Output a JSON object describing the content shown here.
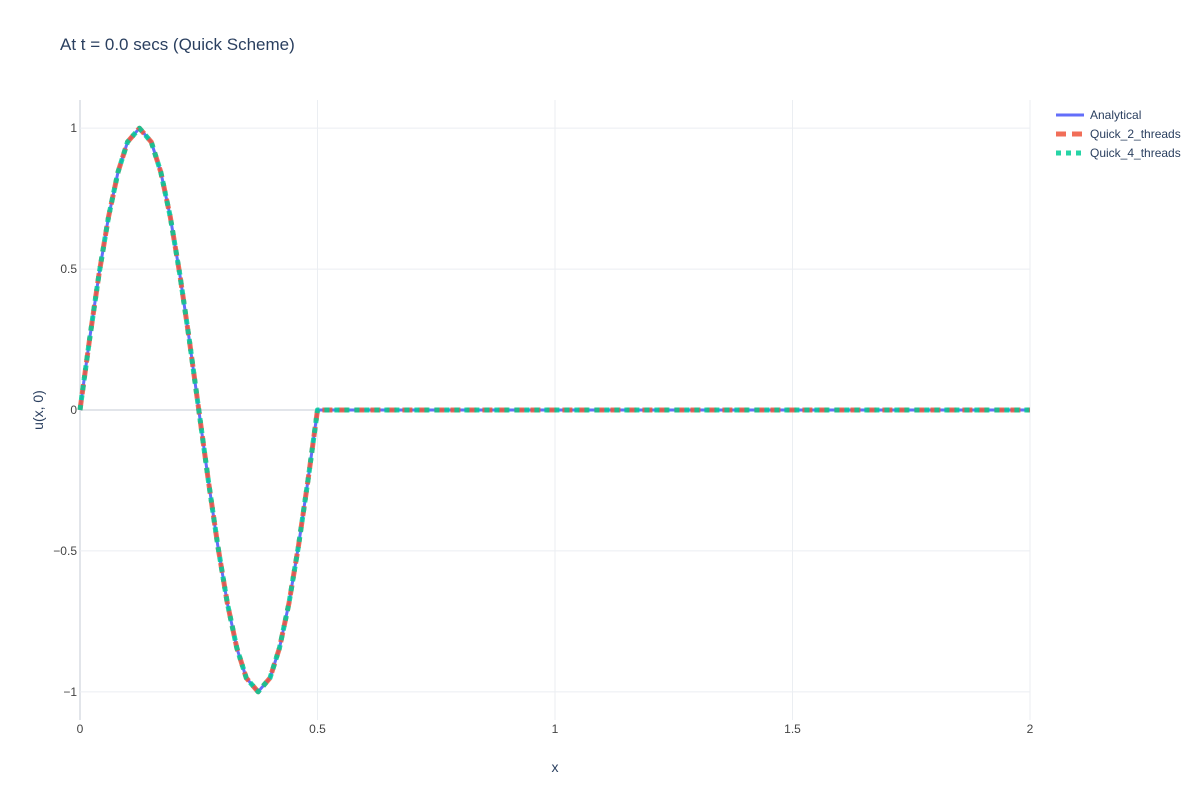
{
  "chart_data": {
    "type": "line",
    "title": "At t = 0.0 secs (Quick Scheme)",
    "xlabel": "x",
    "ylabel": "u(x, 0)",
    "xlim": [
      0,
      2
    ],
    "ylim": [
      -1.1,
      1.1
    ],
    "x_ticks": [
      0,
      0.5,
      1,
      1.5,
      2
    ],
    "x_tick_labels": [
      "0",
      "0.5",
      "1",
      "1.5",
      "2"
    ],
    "y_ticks": [
      1,
      0.5,
      0,
      -0.5,
      -1
    ],
    "y_tick_labels": [
      "1",
      "0.5",
      "0",
      "−0.5",
      "−1"
    ],
    "grid": true,
    "legend_position": "top-right",
    "series": [
      {
        "name": "Analytical",
        "color": "#636efa",
        "dash": "solid",
        "x": [
          0,
          0.02,
          0.04,
          0.06,
          0.08,
          0.1,
          0.125,
          0.15,
          0.17,
          0.19,
          0.21,
          0.23,
          0.25,
          0.27,
          0.29,
          0.31,
          0.33,
          0.35,
          0.375,
          0.4,
          0.42,
          0.44,
          0.46,
          0.48,
          0.5,
          0.75,
          1,
          1.25,
          1.5,
          1.75,
          2
        ],
        "y": [
          0,
          0.249,
          0.482,
          0.685,
          0.844,
          0.951,
          1,
          0.951,
          0.844,
          0.685,
          0.482,
          0.249,
          0,
          -0.249,
          -0.482,
          -0.685,
          -0.844,
          -0.951,
          -1,
          -0.951,
          -0.844,
          -0.685,
          -0.482,
          -0.249,
          0,
          0,
          0,
          0,
          0,
          0,
          0
        ]
      },
      {
        "name": "Quick_2_threads",
        "color": "#ef553b",
        "dash": "dash",
        "x": [
          0,
          0.02,
          0.04,
          0.06,
          0.08,
          0.1,
          0.125,
          0.15,
          0.17,
          0.19,
          0.21,
          0.23,
          0.25,
          0.27,
          0.29,
          0.31,
          0.33,
          0.35,
          0.375,
          0.4,
          0.42,
          0.44,
          0.46,
          0.48,
          0.5,
          0.75,
          1,
          1.25,
          1.5,
          1.75,
          2
        ],
        "y": [
          0,
          0.249,
          0.482,
          0.685,
          0.844,
          0.951,
          1,
          0.951,
          0.844,
          0.685,
          0.482,
          0.249,
          0,
          -0.249,
          -0.482,
          -0.685,
          -0.844,
          -0.951,
          -1,
          -0.951,
          -0.844,
          -0.685,
          -0.482,
          -0.249,
          0,
          0,
          0,
          0,
          0,
          0,
          0
        ]
      },
      {
        "name": "Quick_4_threads",
        "color": "#00cc96",
        "dash": "dot",
        "x": [
          0,
          0.02,
          0.04,
          0.06,
          0.08,
          0.1,
          0.125,
          0.15,
          0.17,
          0.19,
          0.21,
          0.23,
          0.25,
          0.27,
          0.29,
          0.31,
          0.33,
          0.35,
          0.375,
          0.4,
          0.42,
          0.44,
          0.46,
          0.48,
          0.5,
          0.75,
          1,
          1.25,
          1.5,
          1.75,
          2
        ],
        "y": [
          0,
          0.249,
          0.482,
          0.685,
          0.844,
          0.951,
          1,
          0.951,
          0.844,
          0.685,
          0.482,
          0.249,
          0,
          -0.249,
          -0.482,
          -0.685,
          -0.844,
          -0.951,
          -1,
          -0.951,
          -0.844,
          -0.685,
          -0.482,
          -0.249,
          0,
          0,
          0,
          0,
          0,
          0,
          0
        ]
      }
    ]
  }
}
